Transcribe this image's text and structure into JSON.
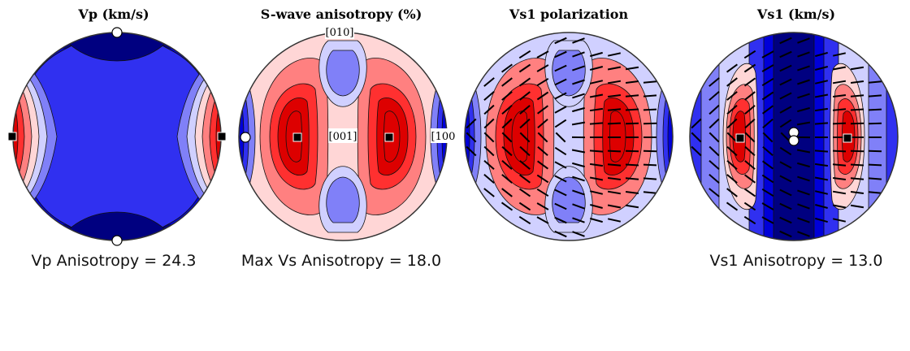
{
  "colors": {
    "palette": [
      "#000080",
      "#0000d8",
      "#3030f0",
      "#8080f8",
      "#d0d0ff",
      "#ffd6d6",
      "#ff8080",
      "#ff3030",
      "#dd0000"
    ],
    "outline": "#333333",
    "tick": "#000000"
  },
  "panels": [
    {
      "id": "vp",
      "title": "Vp (km/s)",
      "caption": "Vp Anisotropy = 24.3"
    },
    {
      "id": "swa",
      "title": "S-wave anisotropy (%)",
      "caption": "Max Vs Anisotropy = 18.0",
      "axis_labels": {
        "top": "[010]",
        "center": "[001]",
        "right": "[100]"
      }
    },
    {
      "id": "pol",
      "title": "Vs1 polarization",
      "caption": ""
    },
    {
      "id": "vs1",
      "title": "Vs1 (km/s)",
      "caption": "Vs1 Anisotropy = 13.0"
    }
  ],
  "markers": {
    "vp": {
      "max": "square",
      "min": "circle"
    },
    "swa": {
      "max": "square",
      "min": "circle"
    },
    "vs1": {
      "max": "square",
      "min": "circle"
    }
  },
  "chart_data": {
    "type": "heatmap",
    "projection": "lower-hemisphere pole figure",
    "panels": [
      "Vp (km/s)",
      "S-wave anisotropy (%)",
      "Vs1 polarization",
      "Vs1 (km/s)"
    ],
    "anisotropy": {
      "Vp Anisotropy": 24.3,
      "Max Vs Anisotropy": 18.0,
      "Vs1 Anisotropy": 13.0
    }
  }
}
